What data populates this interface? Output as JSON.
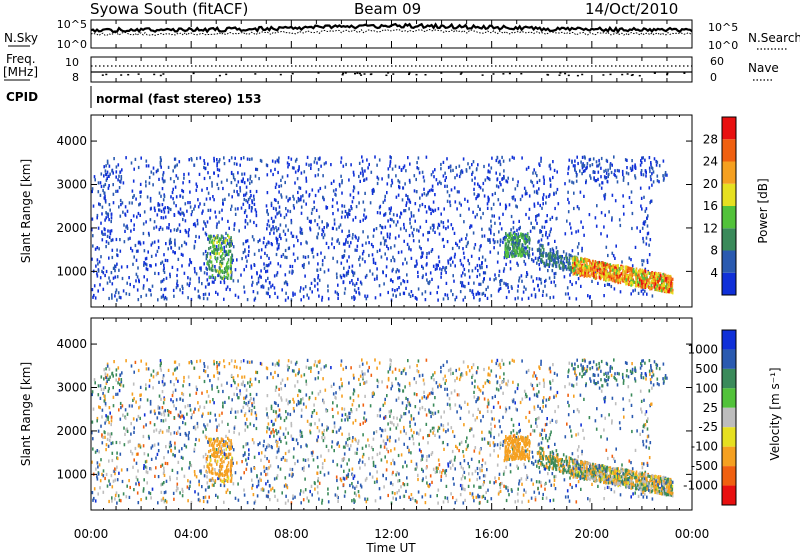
{
  "header": {
    "station": "Syowa South (fitACF)",
    "beam": "Beam 09",
    "date": "14/Oct/2010"
  },
  "summary_panel": {
    "nsky_label": "N.Sky",
    "nsearch_label": "N.Search",
    "freq_label_1": "Freq.",
    "freq_label_2": "[MHz]",
    "nave_label": "Nave",
    "cpid_label": "CPID",
    "cpid_text": "normal (fast stereo) 153",
    "noise_ticks_left": [
      "10^5",
      "10^0"
    ],
    "noise_ticks_right": [
      "10^5",
      "10^0"
    ],
    "freq_ticks": [
      "10",
      "8"
    ],
    "nave_ticks": [
      "60",
      "0"
    ]
  },
  "colors": {
    "power_scale": [
      "#1030d8",
      "#2a5ab0",
      "#3a8a5a",
      "#52c23a",
      "#e6e020",
      "#f5a020",
      "#f06010",
      "#e81010"
    ],
    "velocity_scale": [
      "#1030d8",
      "#2a5ab0",
      "#3a8a5a",
      "#52c23a",
      "#bdbdbd",
      "#e6e020",
      "#f5a020",
      "#f06010",
      "#e81010"
    ],
    "ink": "#000000"
  },
  "chart_data": [
    {
      "type": "heatmap",
      "panel": "power",
      "title": "",
      "xlabel": "Time UT",
      "ylabel": "Slant Range [km]",
      "x_ticks": [
        "00:00",
        "04:00",
        "08:00",
        "12:00",
        "16:00",
        "20:00",
        "00:00"
      ],
      "x_range_hours": [
        0,
        24
      ],
      "y_ticks": [
        1000,
        2000,
        3000,
        4000
      ],
      "ylim": [
        180,
        4600
      ],
      "colorbar": {
        "label": "Power [dB]",
        "ticks": [
          4,
          8,
          12,
          16,
          20,
          24,
          28
        ],
        "range": [
          0,
          32
        ]
      },
      "features": [
        {
          "region": "scattered echoes",
          "time_hours": [
            0,
            22.3
          ],
          "range_km": [
            300,
            3600
          ],
          "value": 3
        },
        {
          "region": "enhanced patch",
          "time_hours": [
            4.6,
            5.6
          ],
          "range_km": [
            800,
            1800
          ],
          "value": 14
        },
        {
          "region": "enhanced patch",
          "time_hours": [
            16.6,
            17.4
          ],
          "range_km": [
            1300,
            1900
          ],
          "value": 12
        },
        {
          "region": "strong echoes",
          "time_hours": [
            19.2,
            23.2
          ],
          "range_km": [
            500,
            1100
          ],
          "value": 22
        }
      ]
    },
    {
      "type": "heatmap",
      "panel": "velocity",
      "title": "",
      "xlabel": "Time UT",
      "ylabel": "Slant Range [km]",
      "x_ticks": [
        "00:00",
        "04:00",
        "08:00",
        "12:00",
        "16:00",
        "20:00",
        "00:00"
      ],
      "x_range_hours": [
        0,
        24
      ],
      "y_ticks": [
        1000,
        2000,
        3000,
        4000
      ],
      "ylim": [
        180,
        4600
      ],
      "colorbar": {
        "label": "Velocity [m s⁻¹]",
        "ticks": [
          "1000",
          "500",
          "100",
          "25",
          "-25",
          "-100",
          "-500",
          "-1000"
        ]
      },
      "features": [
        {
          "region": "scattered echoes",
          "time_hours": [
            0,
            22.3
          ],
          "range_km": [
            300,
            3600
          ],
          "value": 0
        },
        {
          "region": "negative velocity patch",
          "time_hours": [
            4.6,
            5.6
          ],
          "range_km": [
            800,
            1800
          ],
          "value": -150
        },
        {
          "region": "negative velocity patch",
          "time_hours": [
            16.6,
            17.4
          ],
          "range_km": [
            1300,
            1900
          ],
          "value": -300
        },
        {
          "region": "mixed velocity echoes",
          "time_hours": [
            19.2,
            23.2
          ],
          "range_km": [
            500,
            1100
          ],
          "value": -50
        }
      ]
    }
  ]
}
